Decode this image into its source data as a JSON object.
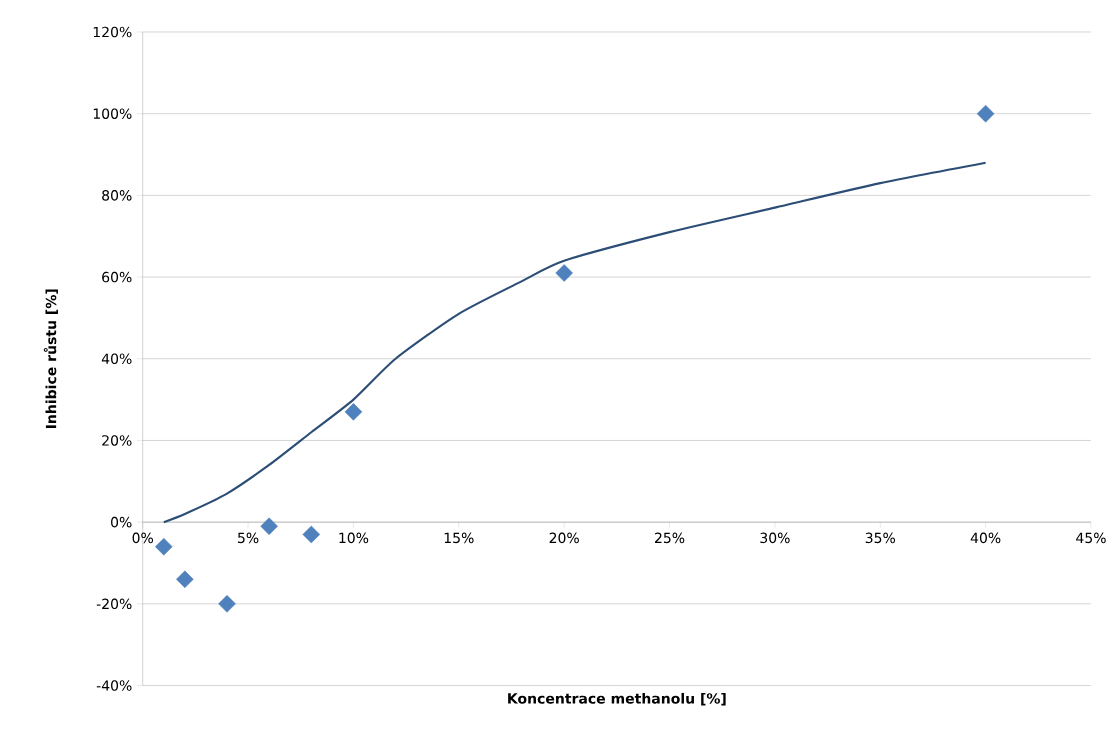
{
  "chart_data": {
    "type": "scatter",
    "xlabel": "Koncentrace methanolu [%]",
    "ylabel": "Inhibice růstu [%]",
    "xlim": [
      0,
      45
    ],
    "ylim": [
      -40,
      120
    ],
    "xticks": [
      {
        "value": 0,
        "label": "0%"
      },
      {
        "value": 5,
        "label": "5%"
      },
      {
        "value": 10,
        "label": "10%"
      },
      {
        "value": 15,
        "label": "15%"
      },
      {
        "value": 20,
        "label": "20%"
      },
      {
        "value": 25,
        "label": "25%"
      },
      {
        "value": 30,
        "label": "30%"
      },
      {
        "value": 35,
        "label": "35%"
      },
      {
        "value": 40,
        "label": "40%"
      },
      {
        "value": 45,
        "label": "45%"
      }
    ],
    "yticks": [
      {
        "value": -40,
        "label": "-40%"
      },
      {
        "value": -20,
        "label": "-20%"
      },
      {
        "value": 0,
        "label": "0%"
      },
      {
        "value": 20,
        "label": "20%"
      },
      {
        "value": 40,
        "label": "40%"
      },
      {
        "value": 60,
        "label": "60%"
      },
      {
        "value": 80,
        "label": "80%"
      },
      {
        "value": 100,
        "label": "100%"
      },
      {
        "value": 120,
        "label": "120%"
      }
    ],
    "grid": "y",
    "series": [
      {
        "marker": "diamond",
        "color": "#4f81bd",
        "x": [
          1,
          2,
          4,
          6,
          8,
          10,
          20,
          40
        ],
        "values": [
          -6,
          -14,
          -20,
          -1,
          -3,
          27,
          61,
          100
        ]
      },
      {
        "type": "line",
        "marker": "none",
        "color": "#2c4d75",
        "x": [
          1,
          2,
          4,
          6,
          8,
          10,
          12,
          15,
          18,
          20,
          25,
          30,
          35,
          40
        ],
        "values": [
          0,
          2,
          7,
          14,
          22,
          30,
          40,
          51,
          59,
          64,
          71,
          77,
          83,
          88
        ]
      }
    ]
  }
}
